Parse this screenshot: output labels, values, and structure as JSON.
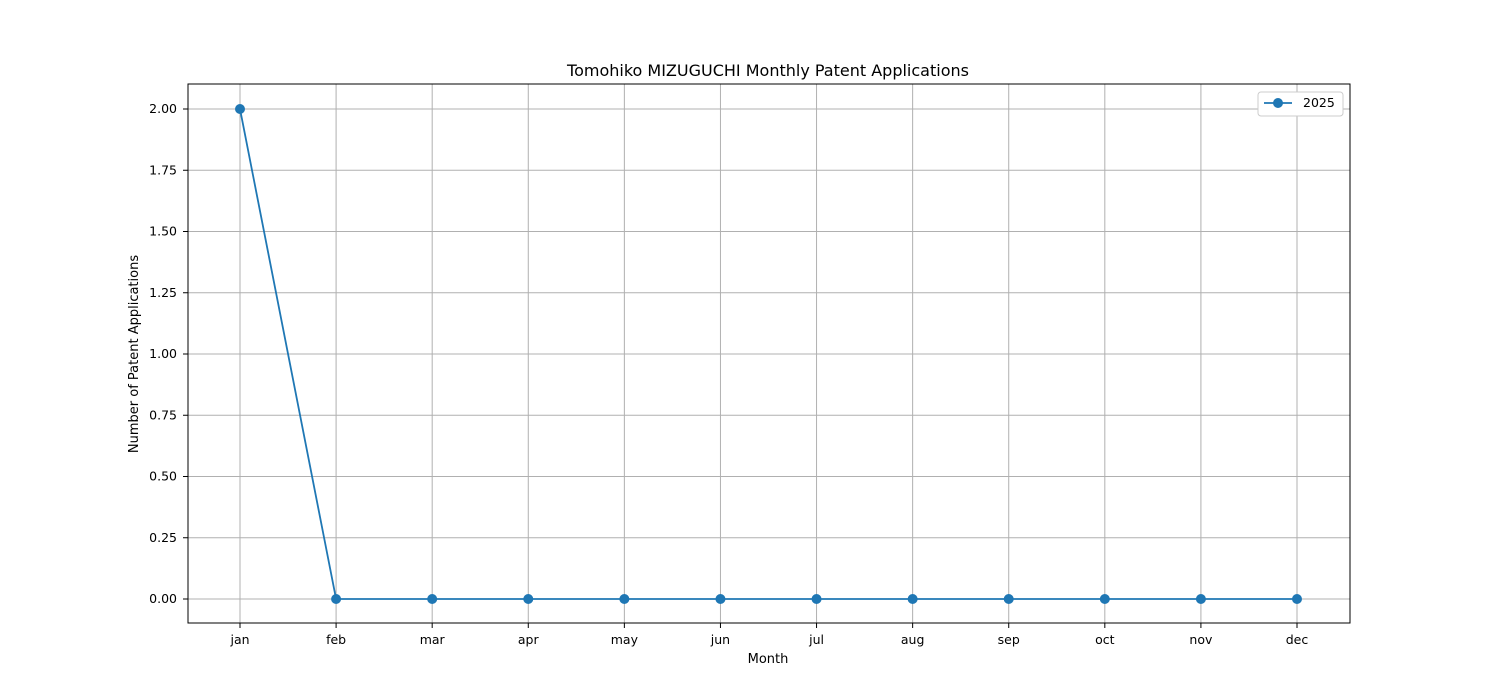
{
  "chart_data": {
    "type": "line",
    "title": "Tomohiko MIZUGUCHI Monthly Patent Applications",
    "xlabel": "Month",
    "ylabel": "Number of Patent Applications",
    "categories": [
      "jan",
      "feb",
      "mar",
      "apr",
      "may",
      "jun",
      "jul",
      "aug",
      "sep",
      "oct",
      "nov",
      "dec"
    ],
    "series": [
      {
        "name": "2025",
        "values": [
          2,
          0,
          0,
          0,
          0,
          0,
          0,
          0,
          0,
          0,
          0,
          0
        ],
        "color": "#1f77b4",
        "marker": "circle"
      }
    ],
    "ylim": [
      -0.1,
      2.1
    ],
    "yticks": [
      "0.00",
      "0.25",
      "0.50",
      "0.75",
      "1.00",
      "1.25",
      "1.50",
      "1.75",
      "2.00"
    ],
    "grid": true,
    "legend_position": "top-right"
  }
}
